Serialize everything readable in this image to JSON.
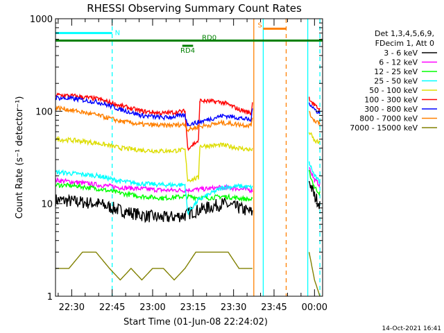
{
  "chart_data": {
    "type": "line",
    "title": "RHESSI Observing Summary Count Rates",
    "xlabel": "Start Time (01-Jun-08 22:24:02)",
    "ylabel": "Count Rate (s⁻¹ detector⁻¹)",
    "yscale": "log",
    "ylim": [
      1,
      1000
    ],
    "xlim_minutes": [
      0,
      99
    ],
    "x_tick_labels": [
      "22:30",
      "22:45",
      "23:00",
      "23:15",
      "23:30",
      "23:45",
      "00:00"
    ],
    "x_tick_minutes": [
      6,
      21,
      36,
      51,
      66,
      81,
      96
    ],
    "y_tick_labels": [
      "1",
      "10",
      "100",
      "1000"
    ],
    "y_tick_values": [
      1,
      10,
      100,
      1000
    ],
    "legend_header": [
      "Det 1,3,4,5,6,9,",
      "FDecim 1, Att 0"
    ],
    "legend_placement": "right",
    "series": [
      {
        "name": "3 - 6 keV",
        "color": "#000000",
        "x": [
          0,
          8,
          16,
          24,
          32,
          40,
          48,
          50,
          56,
          62,
          68,
          73,
          73.5,
          77,
          80.5,
          94,
          96,
          98
        ],
        "values": [
          11,
          10.5,
          10,
          8.5,
          7.5,
          7,
          7.5,
          8,
          9,
          10,
          9,
          8,
          null,
          null,
          null,
          18,
          12,
          10
        ]
      },
      {
        "name": "6 - 12 keV",
        "color": "#ff00ff",
        "x": [
          0,
          8,
          16,
          24,
          32,
          40,
          48,
          56,
          62,
          68,
          73,
          73.5,
          77,
          80.5,
          94,
          96,
          98
        ],
        "values": [
          18,
          17,
          16,
          15,
          14.5,
          14,
          14,
          14.5,
          15,
          14.5,
          14,
          null,
          null,
          null,
          25,
          18,
          16
        ]
      },
      {
        "name": "12 - 25 keV",
        "color": "#00ff00",
        "x": [
          0,
          8,
          16,
          24,
          32,
          40,
          48,
          56,
          62,
          68,
          73,
          73.5,
          77,
          80.5,
          94,
          96,
          98
        ],
        "values": [
          16,
          15.5,
          14.5,
          13,
          12,
          11.5,
          12,
          11.5,
          12,
          11.5,
          11,
          null,
          null,
          null,
          22,
          15,
          13
        ]
      },
      {
        "name": "25 - 50 keV",
        "color": "#00ffff",
        "x": [
          0,
          8,
          16,
          24,
          32,
          40,
          48,
          49,
          53,
          62,
          68,
          73,
          73.5,
          77,
          80.5,
          94,
          96,
          98
        ],
        "values": [
          22,
          21,
          20,
          17.5,
          16.5,
          16,
          16,
          8,
          11,
          15,
          15.5,
          15,
          null,
          null,
          null,
          28,
          20,
          17
        ]
      },
      {
        "name": "50 - 100 keV",
        "color": "#dddd00",
        "x": [
          0,
          8,
          16,
          24,
          32,
          40,
          48,
          49,
          53,
          53.5,
          62,
          68,
          73,
          73.5,
          77,
          80.5,
          94,
          96,
          98
        ],
        "values": [
          50,
          48,
          45,
          40,
          38,
          37,
          38,
          18,
          19,
          42,
          43,
          40,
          38,
          null,
          null,
          null,
          60,
          48,
          45
        ]
      },
      {
        "name": "100 - 300 keV",
        "color": "#ff0000",
        "x": [
          0,
          8,
          16,
          24,
          32,
          40,
          48,
          49,
          53,
          53.5,
          62,
          68,
          72.5,
          73,
          73.5,
          77,
          80.5,
          94,
          96,
          98
        ],
        "values": [
          150,
          145,
          135,
          115,
          100,
          95,
          100,
          40,
          48,
          130,
          125,
          105,
          95,
          125,
          null,
          null,
          null,
          140,
          115,
          105
        ]
      },
      {
        "name": "300 - 800 keV",
        "color": "#0000ff",
        "x": [
          0,
          8,
          16,
          24,
          32,
          40,
          48,
          49,
          53,
          62,
          68,
          72.5,
          73,
          73.5,
          77,
          80.5,
          94,
          96,
          98
        ],
        "values": [
          140,
          135,
          125,
          105,
          90,
          85,
          90,
          72,
          76,
          90,
          85,
          80,
          105,
          null,
          null,
          null,
          125,
          105,
          95
        ]
      },
      {
        "name": "800 - 7000 keV",
        "color": "#ff8000",
        "x": [
          0,
          8,
          16,
          24,
          32,
          40,
          48,
          49,
          53,
          62,
          68,
          72.5,
          73,
          73.5,
          77,
          80.5,
          94,
          96,
          98
        ],
        "values": [
          110,
          100,
          90,
          78,
          72,
          70,
          72,
          63,
          68,
          75,
          72,
          70,
          90,
          null,
          null,
          null,
          95,
          80,
          75
        ]
      },
      {
        "name": "7000 - 15000 keV",
        "color": "#808000",
        "x": [
          0,
          5,
          10,
          15,
          20,
          24,
          28,
          32,
          36,
          40,
          44,
          48,
          52,
          56,
          60,
          64,
          68,
          72,
          73,
          73.5,
          77,
          80.5,
          94,
          96,
          98
        ],
        "values": [
          2,
          2,
          3,
          3,
          2,
          1.5,
          2,
          1.5,
          2,
          2,
          1.5,
          2,
          3,
          3,
          3,
          3,
          2,
          2,
          2,
          null,
          null,
          null,
          3,
          1.5,
          1
        ]
      }
    ],
    "flags": [
      {
        "label": "N",
        "color": "#00ffff",
        "x": [
          0,
          21
        ],
        "y": 700,
        "dash_at": 21
      },
      {
        "label": "RD0",
        "color": "#008000",
        "x": [
          0,
          99
        ],
        "y": 580
      },
      {
        "label": "RD4",
        "color": "#008000",
        "x": [
          47,
          51
        ],
        "y": 510
      },
      {
        "label": "S",
        "color": "#ff8000",
        "x": [
          77,
          85.5
        ],
        "y": 780
      }
    ],
    "vlines": [
      {
        "x": 21,
        "color": "#00ffff",
        "style": "dashed"
      },
      {
        "x": 73.5,
        "color": "#ff8000",
        "style": "solid"
      },
      {
        "x": 77,
        "color": "#00ffff",
        "style": "solid"
      },
      {
        "x": 85.5,
        "color": "#ff8000",
        "style": "dashed"
      },
      {
        "x": 93.5,
        "color": "#00ffff",
        "style": "solid"
      },
      {
        "x": 98,
        "color": "#00ffff",
        "style": "dashed"
      }
    ],
    "timestamp": "14-Oct-2021 16:41"
  }
}
